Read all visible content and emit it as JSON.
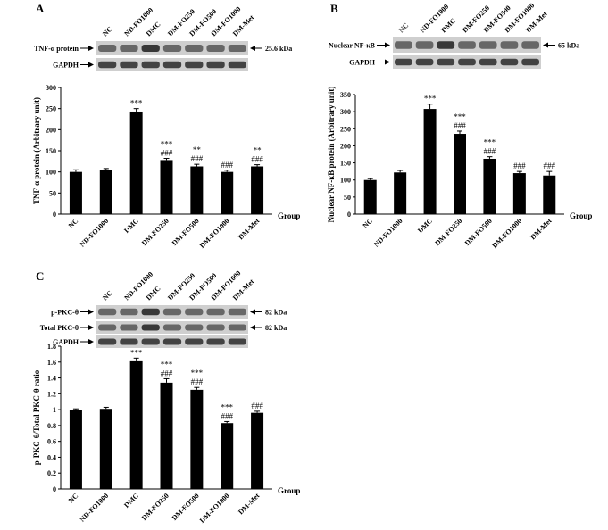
{
  "chart_data": [
    {
      "type": "bar",
      "panel_label": "A",
      "ylabel": "TNF-α protein (Arbitrary unit)",
      "xlabel": "Group",
      "categories": [
        "NC",
        "ND-FO1000",
        "DMC",
        "DM-FO250",
        "DM-FO500",
        "DM-FO1000",
        "DM-Met"
      ],
      "values": [
        100,
        105,
        243,
        128,
        113,
        100,
        113
      ],
      "errors": [
        5,
        3,
        7,
        4,
        5,
        4,
        4
      ],
      "annotations": [
        null,
        null,
        [
          "***"
        ],
        [
          "***",
          "###"
        ],
        [
          "**",
          "###"
        ],
        [
          "###"
        ],
        [
          "**",
          "###"
        ]
      ],
      "color": "#000000",
      "ylim": [
        0,
        300
      ],
      "yticks": [
        0,
        50,
        100,
        150,
        200,
        250,
        300
      ],
      "blots": [
        {
          "label": "TNF-α protein",
          "size": "25.6 kDa"
        },
        {
          "label": "GAPDH"
        }
      ]
    },
    {
      "type": "bar",
      "panel_label": "B",
      "ylabel": "Nuclear NF-κB protein (Arbitrary unit)",
      "xlabel": "Group",
      "categories": [
        "NC",
        "ND-FO1000",
        "DMC",
        "DM-FO250",
        "DM-FO500",
        "DM-FO1000",
        "DM-Met"
      ],
      "values": [
        100,
        122,
        308,
        235,
        162,
        120,
        113
      ],
      "errors": [
        4,
        6,
        14,
        8,
        6,
        5,
        12
      ],
      "annotations": [
        null,
        null,
        [
          "***"
        ],
        [
          "***",
          "###"
        ],
        [
          "***",
          "###"
        ],
        [
          "###"
        ],
        [
          "###"
        ]
      ],
      "color": "#000000",
      "ylim": [
        0,
        350
      ],
      "yticks": [
        0,
        50,
        100,
        150,
        200,
        250,
        300,
        350
      ],
      "blots": [
        {
          "label": "Nuclear NF-κB",
          "size": "65 kDa"
        },
        {
          "label": "GAPDH"
        }
      ]
    },
    {
      "type": "bar",
      "panel_label": "C",
      "ylabel": "p-PKC-θ/Total PKC-θ ratio",
      "xlabel": "Group",
      "categories": [
        "NC",
        "ND-FO1000",
        "DMC",
        "DM-FO250",
        "DM-FO500",
        "DM-FO1000",
        "DM-Met"
      ],
      "values": [
        1.0,
        1.01,
        1.61,
        1.34,
        1.25,
        0.83,
        0.96
      ],
      "errors": [
        0.01,
        0.02,
        0.04,
        0.05,
        0.03,
        0.02,
        0.02
      ],
      "annotations": [
        null,
        null,
        [
          "***"
        ],
        [
          "***",
          "###"
        ],
        [
          "***",
          "###"
        ],
        [
          "***",
          "###"
        ],
        [
          "###"
        ]
      ],
      "color": "#000000",
      "ylim": [
        0,
        1.8
      ],
      "yticks": [
        0,
        0.2,
        0.4,
        0.6,
        0.8,
        1,
        1.2,
        1.4,
        1.6,
        1.8
      ],
      "blots": [
        {
          "label": "p-PKC-θ",
          "size": "82 kDa"
        },
        {
          "label": "Total PKC-θ",
          "size": "82 kDa"
        },
        {
          "label": "GAPDH"
        }
      ]
    }
  ]
}
